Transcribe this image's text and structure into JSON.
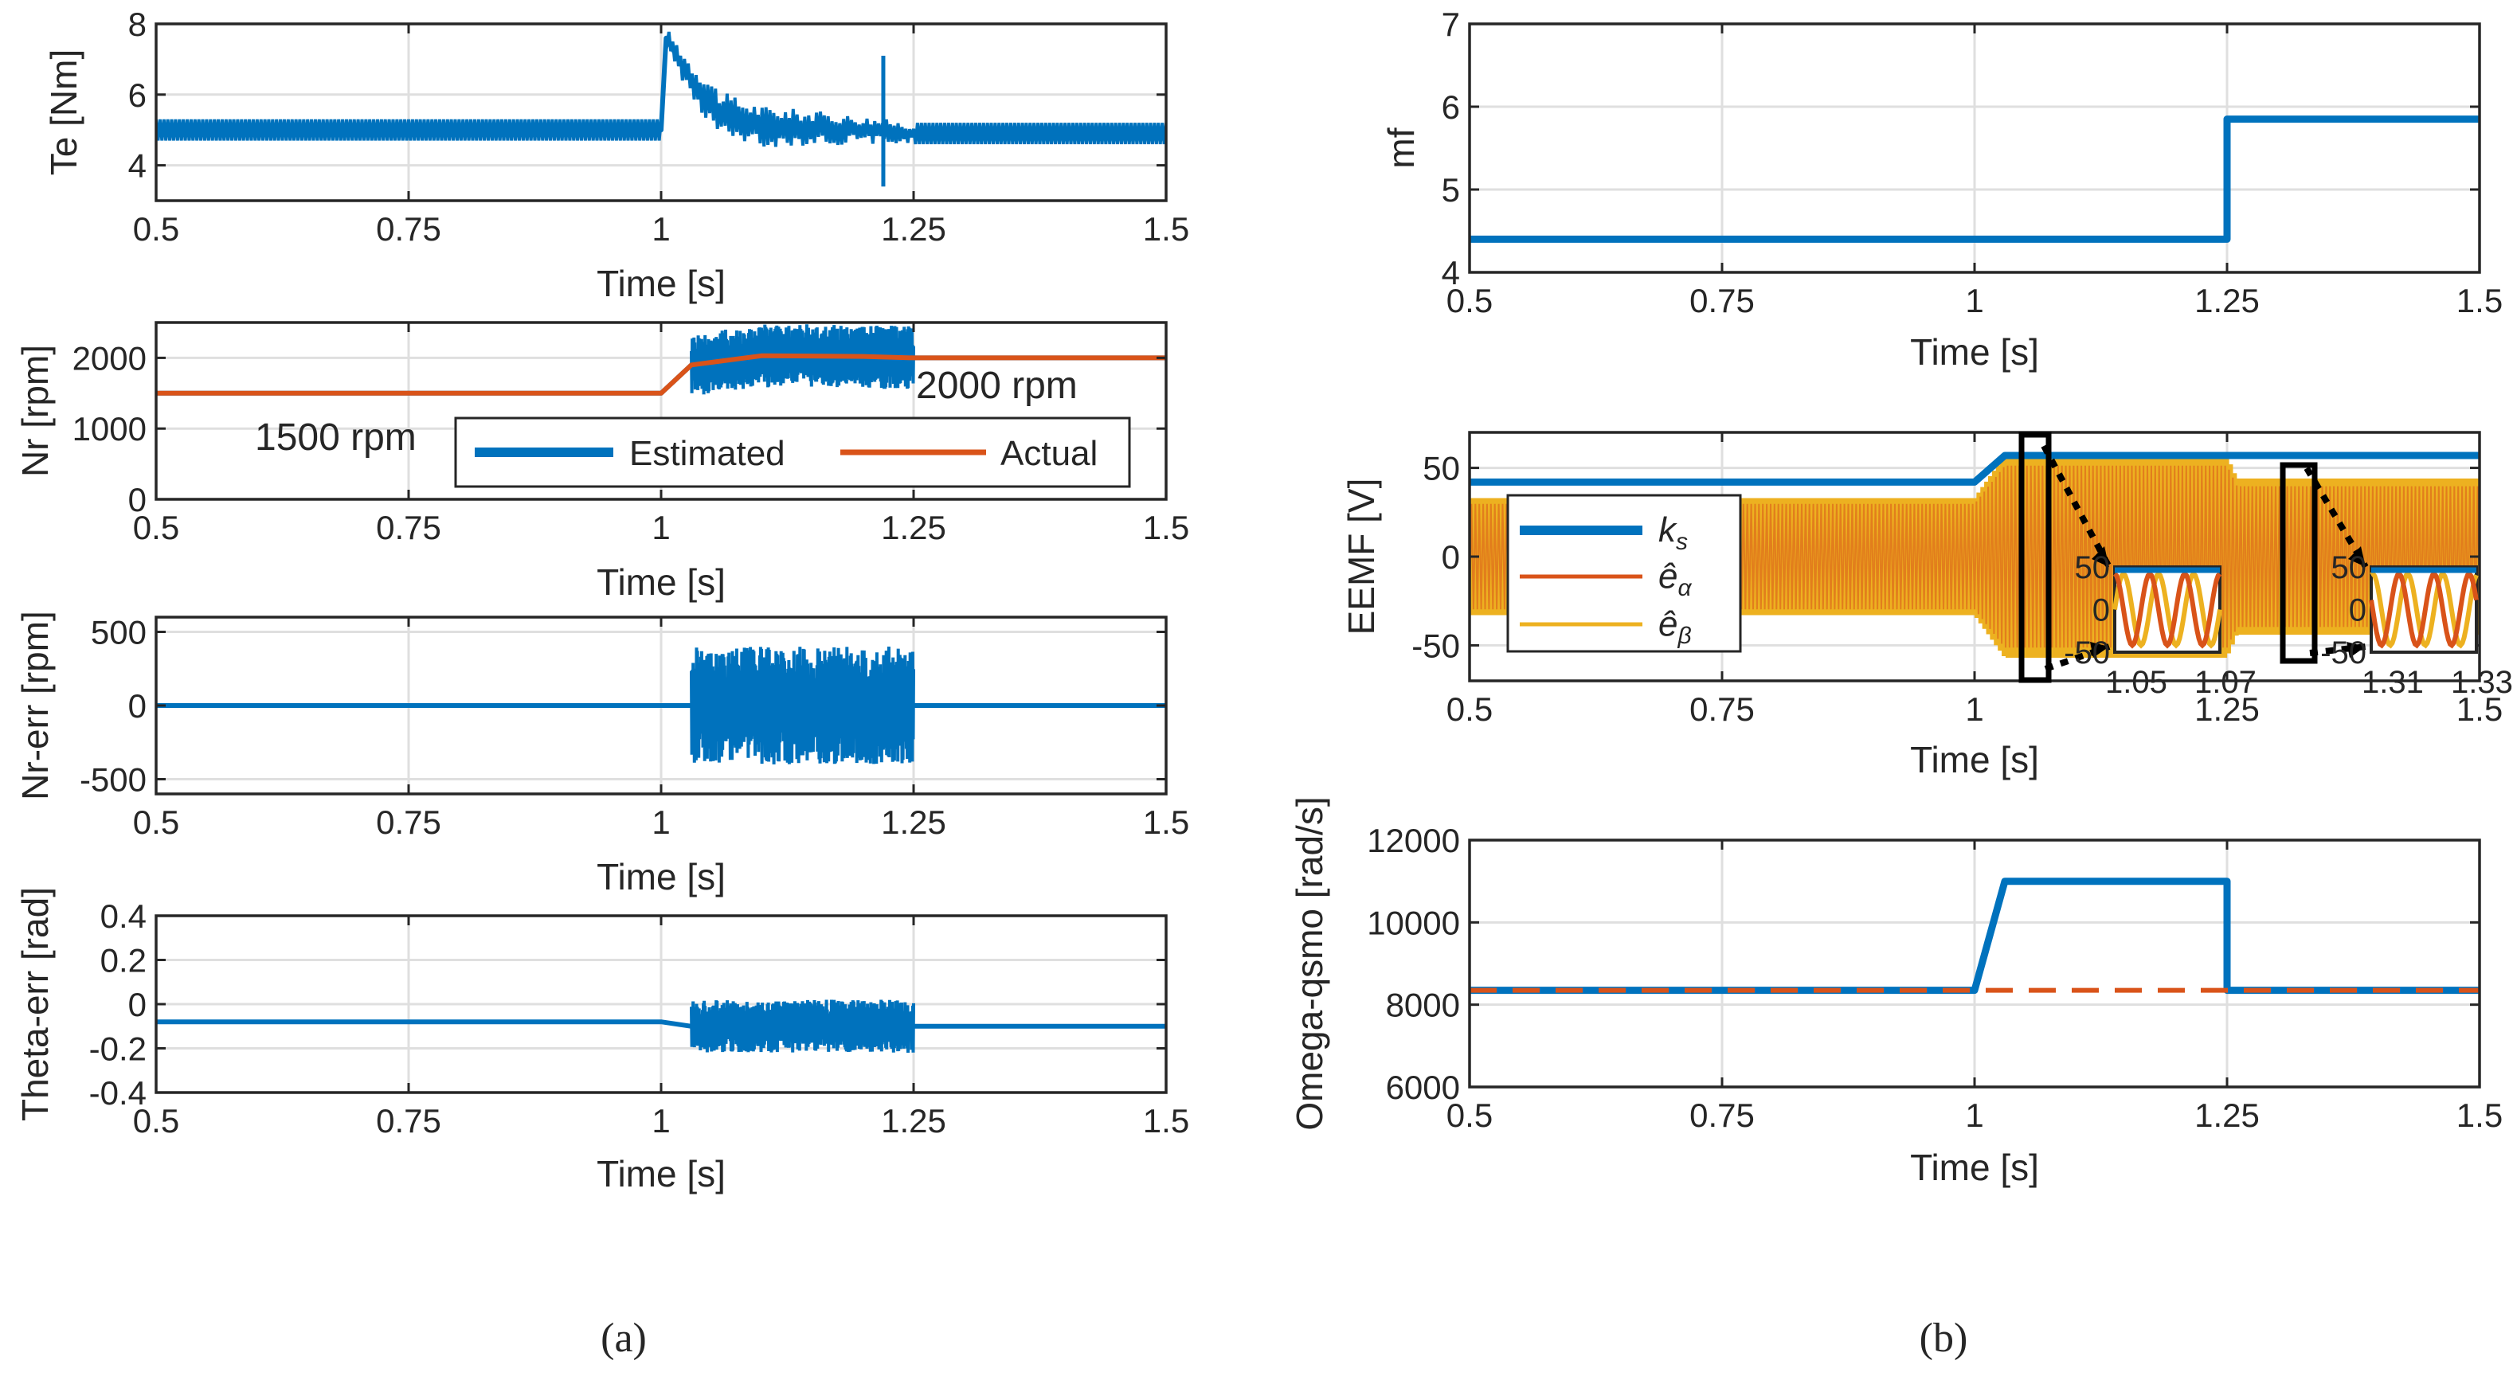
{
  "colors": {
    "blue": "#0072BD",
    "orange": "#D95319",
    "yellow": "#EDB120",
    "axis": "#262626",
    "grid": "#dfdfdf"
  },
  "captions": {
    "left": "(a)",
    "right": "(b)"
  },
  "chart_data": [
    {
      "id": "te",
      "type": "line",
      "ylabel": "Te [Nm]",
      "xlabel": "Time [s]",
      "xlim": [
        0.5,
        1.5
      ],
      "ylim": [
        3,
        8
      ],
      "xticks": [
        0.5,
        0.75,
        1,
        1.25,
        1.5
      ],
      "xticklabels": [
        "0.5",
        "0.75",
        "1",
        "1.25",
        "1.5"
      ],
      "yticks": [
        4,
        6,
        8
      ],
      "yticklabels": [
        "4",
        "6",
        "8"
      ],
      "grid": true,
      "series": [
        {
          "color": "#0072BD",
          "x": [
            0.5,
            1.0,
            1.005,
            1.03,
            1.06,
            1.1,
            1.2,
            1.25,
            1.5
          ],
          "y": [
            5.0,
            5.0,
            7.6,
            6.4,
            5.4,
            5.1,
            5.0,
            4.9,
            4.9
          ]
        }
      ],
      "band": {
        "color": "#0072BD",
        "x": [
          0.5,
          1.0,
          1.005,
          1.05,
          1.25,
          1.5
        ],
        "hw": [
          0.3,
          0.3,
          0.3,
          0.7,
          0.3,
          0.3
        ]
      },
      "spikes": [
        {
          "x": 1.22,
          "y": [
            3.4,
            7.1
          ]
        }
      ]
    },
    {
      "id": "nr",
      "type": "line",
      "ylabel": "Nr [rpm]",
      "xlabel": "Time [s]",
      "xlim": [
        0.5,
        1.5
      ],
      "ylim": [
        0,
        2500
      ],
      "xticks": [
        0.5,
        0.75,
        1,
        1.25,
        1.5
      ],
      "xticklabels": [
        "0.5",
        "0.75",
        "1",
        "1.25",
        "1.5"
      ],
      "yticks": [
        0,
        1000,
        2000
      ],
      "yticklabels": [
        "0",
        "1000",
        "2000"
      ],
      "grid": true,
      "series": [
        {
          "name": "Estimated",
          "color": "#0072BD",
          "x": [
            0.5,
            1.0,
            1.03,
            1.1,
            1.2,
            1.25,
            1.5
          ],
          "y": [
            1500,
            1500,
            1900,
            2030,
            2020,
            2000,
            2000
          ]
        },
        {
          "name": "Actual",
          "color": "#D95319",
          "x": [
            0.5,
            1.0,
            1.03,
            1.1,
            1.2,
            1.25,
            1.5
          ],
          "y": [
            1500,
            1500,
            1900,
            2030,
            2020,
            2000,
            2000
          ]
        }
      ],
      "band": {
        "color": "#0072BD",
        "x": [
          1.03,
          1.25
        ],
        "hw": [
          450,
          450
        ]
      },
      "legend": {
        "position": "lower-right",
        "entries": [
          "Estimated",
          "Actual"
        ]
      },
      "annotations": [
        "1500 rpm",
        "2000 rpm"
      ]
    },
    {
      "id": "nrerr",
      "type": "line",
      "ylabel": "Nr-err [rpm]",
      "xlabel": "Time [s]",
      "xlim": [
        0.5,
        1.5
      ],
      "ylim": [
        -600,
        600
      ],
      "xticks": [
        0.5,
        0.75,
        1,
        1.25,
        1.5
      ],
      "xticklabels": [
        "0.5",
        "0.75",
        "1",
        "1.25",
        "1.5"
      ],
      "yticks": [
        -500,
        0,
        500
      ],
      "yticklabels": [
        "-500",
        "0",
        "500"
      ],
      "grid": true,
      "series": [
        {
          "color": "#0072BD",
          "x": [
            0.5,
            1.5
          ],
          "y": [
            0,
            0
          ]
        }
      ],
      "band": {
        "color": "#0072BD",
        "x": [
          1.03,
          1.25
        ],
        "hw": [
          400,
          400
        ]
      }
    },
    {
      "id": "theta",
      "type": "line",
      "ylabel": "Theta-err [rad]",
      "xlabel": "Time [s]",
      "xlim": [
        0.5,
        1.5
      ],
      "ylim": [
        -0.4,
        0.4
      ],
      "xticks": [
        0.5,
        0.75,
        1,
        1.25,
        1.5
      ],
      "xticklabels": [
        "0.5",
        "0.75",
        "1",
        "1.25",
        "1.5"
      ],
      "yticks": [
        -0.4,
        -0.2,
        0,
        0.2,
        0.4
      ],
      "yticklabels": [
        "-0.4",
        "-0.2",
        "0",
        "0.2",
        "0.4"
      ],
      "grid": true,
      "series": [
        {
          "color": "#0072BD",
          "x": [
            0.5,
            1.0,
            1.03,
            1.25,
            1.26,
            1.5
          ],
          "y": [
            -0.08,
            -0.08,
            -0.1,
            -0.1,
            -0.1,
            -0.1
          ]
        }
      ],
      "band": {
        "color": "#0072BD",
        "x": [
          1.03,
          1.25
        ],
        "hw": [
          0.12,
          0.12
        ]
      }
    },
    {
      "id": "mf",
      "type": "line",
      "ylabel": "mf",
      "xlabel": "Time [s]",
      "xlim": [
        0.5,
        1.5
      ],
      "ylim": [
        4,
        7
      ],
      "xticks": [
        0.5,
        0.75,
        1,
        1.25,
        1.5
      ],
      "xticklabels": [
        "0.5",
        "0.75",
        "1",
        "1.25",
        "1.5"
      ],
      "yticks": [
        4,
        5,
        6,
        7
      ],
      "yticklabels": [
        "4",
        "5",
        "6",
        "7"
      ],
      "grid": true,
      "series": [
        {
          "color": "#0072BD",
          "x": [
            0.5,
            1.25,
            1.25,
            1.5
          ],
          "y": [
            4.4,
            4.4,
            5.85,
            5.85
          ]
        }
      ]
    },
    {
      "id": "eemf",
      "type": "line",
      "ylabel": "EEMF [V]",
      "xlabel": "Time [s]",
      "xlim": [
        0.5,
        1.5
      ],
      "ylim": [
        -70,
        70
      ],
      "xticks": [
        0.5,
        0.75,
        1,
        1.25,
        1.5
      ],
      "xticklabels": [
        "0.5",
        "0.75",
        "1",
        "1.25",
        "1.5"
      ],
      "yticks": [
        -50,
        0,
        50
      ],
      "yticklabels": [
        "-50",
        "0",
        "50"
      ],
      "grid": true,
      "series": [
        {
          "name": "k_s",
          "color": "#0072BD",
          "x": [
            0.5,
            1.0,
            1.03,
            1.25,
            1.5
          ],
          "y": [
            42,
            42,
            57,
            57,
            57
          ]
        },
        {
          "name": "ê_α",
          "color": "#D95319",
          "x": [
            0.5,
            1.5
          ],
          "y": [
            0,
            0
          ]
        },
        {
          "name": "ê_β",
          "color": "#EDB120",
          "x": [
            0.5,
            1.5
          ],
          "y": [
            0,
            0
          ]
        }
      ],
      "band": {
        "color": "#EDB120",
        "x": [
          0.5,
          1.0,
          1.03,
          1.25,
          1.26,
          1.5
        ],
        "hw": [
          33,
          33,
          57,
          57,
          44,
          44
        ]
      },
      "legend": {
        "position": "upper-left",
        "entries": [
          "k_s",
          "ê_α",
          "ê_β"
        ]
      },
      "insets": [
        {
          "xticklabels": [
            "1.05",
            "1.07"
          ],
          "yticklabels": [
            "50",
            "0",
            "-50"
          ]
        },
        {
          "xticklabels": [
            "1.31",
            "1.33"
          ],
          "yticklabels": [
            "50",
            "0",
            "-50"
          ]
        }
      ]
    },
    {
      "id": "omega",
      "type": "line",
      "ylabel": "Omega-qsmo [rad/s]",
      "xlabel": "Time [s]",
      "xlim": [
        0.5,
        1.5
      ],
      "ylim": [
        6000,
        12000
      ],
      "xticks": [
        0.5,
        0.75,
        1,
        1.25,
        1.5
      ],
      "xticklabels": [
        "0.5",
        "0.75",
        "1",
        "1.25",
        "1.5"
      ],
      "yticks": [
        6000,
        8000,
        10000,
        12000
      ],
      "yticklabels": [
        "6000",
        "8000",
        "10000",
        "12000"
      ],
      "grid": true,
      "series": [
        {
          "color": "#0072BD",
          "x": [
            0.5,
            1.0,
            1.03,
            1.25,
            1.25,
            1.5
          ],
          "y": [
            8350,
            8350,
            11000,
            11000,
            8350,
            8350
          ]
        },
        {
          "color": "#D95319",
          "dashed": true,
          "x": [
            0.5,
            1.5
          ],
          "y": [
            8350,
            8350
          ]
        }
      ]
    }
  ]
}
